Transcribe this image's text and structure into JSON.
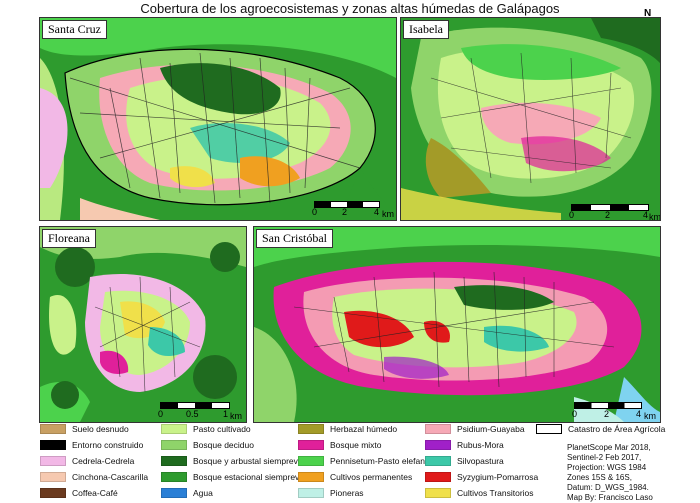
{
  "title": "Cobertura de los agroecosistemas y zonas altas húmedas de Galápagos",
  "north_label": "N",
  "panels": {
    "santa_cruz": {
      "name": "Santa Cruz",
      "scale_labels": [
        "0",
        "2",
        "4",
        "km"
      ]
    },
    "isabela": {
      "name": "Isabela",
      "scale_labels": [
        "0",
        "2",
        "4",
        "km"
      ]
    },
    "floreana": {
      "name": "Floreana",
      "scale_labels": [
        "0",
        "0.5",
        "1",
        "km"
      ]
    },
    "san_cristobal": {
      "name": "San Cristóbal",
      "scale_labels": [
        "0",
        "2",
        "4",
        "km"
      ]
    }
  },
  "legend": {
    "col1": [
      {
        "label": "Suelo desnudo",
        "color": "#c8a063"
      },
      {
        "label": "Entorno construido",
        "color": "#000000"
      },
      {
        "label": "Cedrela-Cedrela",
        "color": "#f2b8e6"
      },
      {
        "label": "Cinchona-Cascarilla",
        "color": "#f6c9b0"
      },
      {
        "label": "Coffea-Café",
        "color": "#6b3a1f"
      }
    ],
    "col2": [
      {
        "label": "Pasto cultivado",
        "color": "#c9f28a"
      },
      {
        "label": "Bosque deciduo",
        "color": "#8fd46a"
      },
      {
        "label": "Bosque y arbustal siempreverde",
        "color": "#1f6b1f"
      },
      {
        "label": "Bosque estacional siempreverde",
        "color": "#2e9b2e"
      },
      {
        "label": "Agua",
        "color": "#2a7fd6"
      }
    ],
    "col3": [
      {
        "label": "Herbazal húmedo",
        "color": "#a39b28"
      },
      {
        "label": "Bosque mixto",
        "color": "#e0209a"
      },
      {
        "label": "Pennisetum-Pasto elefante",
        "color": "#4cd24c"
      },
      {
        "label": "Cultivos permanentes",
        "color": "#f0a020"
      },
      {
        "label": "Pioneras",
        "color": "#bff0e6"
      }
    ],
    "col4": [
      {
        "label": "Psidium-Guayaba",
        "color": "#f6a9b6"
      },
      {
        "label": "Rubus-Mora",
        "color": "#a020c8"
      },
      {
        "label": "Silvopastura",
        "color": "#3cc8a8"
      },
      {
        "label": "Syzygium-Pomarrosa",
        "color": "#e01a1a"
      },
      {
        "label": "Cultivos Transitorios",
        "color": "#f0e04a"
      }
    ],
    "catastro": {
      "label": "Catastro de Área Agrícola"
    }
  },
  "credits": [
    "PlanetScope Mar 2018,",
    "Sentinel-2 Feb 2017,",
    "Projection: WGS 1984",
    "Zones 15S & 16S,",
    "Datum: D_WGS_1984.",
    "Map By: Francisco Laso"
  ]
}
